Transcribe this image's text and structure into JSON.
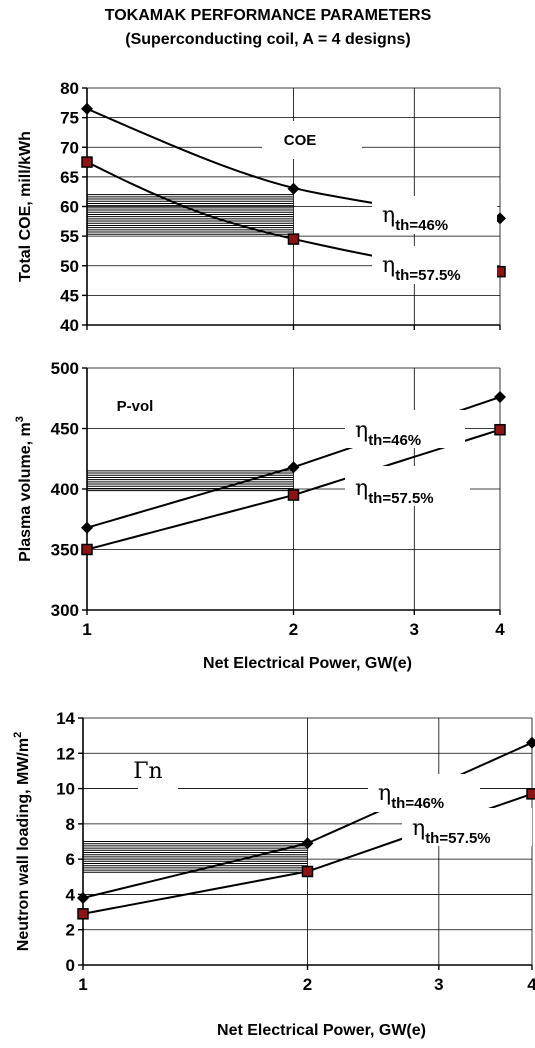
{
  "figure": {
    "title_line1": "TOKAMAK PERFORMANCE PARAMETERS",
    "title_line2": "(Superconducting coil, A = 4 designs)"
  },
  "chart_data": [
    {
      "type": "line",
      "annotation": "COE",
      "ylabel": "Total COE, mill/kWh",
      "xlabel": "",
      "x_scale": "log",
      "ylim": [
        40,
        80
      ],
      "y_ticks": [
        40,
        45,
        50,
        55,
        60,
        65,
        70,
        75,
        80
      ],
      "x_ticks": [
        1,
        2,
        3,
        4
      ],
      "grid": true,
      "shaded_band": {
        "x": [
          1,
          2
        ],
        "y": [
          55,
          62
        ]
      },
      "series": [
        {
          "symbol": "η",
          "name": "th=46%",
          "marker": "diamond",
          "x": [
            1,
            2,
            4
          ],
          "y": [
            76.5,
            63,
            58
          ],
          "curve_x": [
            1,
            1.2,
            1.45,
            1.7,
            2,
            2.4,
            2.8,
            3.2
          ],
          "curve_y": [
            76.5,
            72.5,
            68.5,
            65.5,
            63,
            61.3,
            60,
            59
          ]
        },
        {
          "symbol": "η",
          "name": "th=57.5%",
          "marker": "square",
          "x": [
            1,
            2,
            4
          ],
          "y": [
            67.5,
            54.5,
            49
          ],
          "curve_x": [
            1,
            1.2,
            1.45,
            1.7,
            2,
            2.4,
            2.8,
            3.2
          ],
          "curve_y": [
            67.5,
            63,
            59,
            56.5,
            54.5,
            52.5,
            51,
            50
          ]
        }
      ]
    },
    {
      "type": "line",
      "annotation": "P-vol",
      "ylabel": "Plasma volume, m",
      "ylabel_superscript": "3",
      "xlabel": "Net Electrical Power, GW(e)",
      "x_scale": "log",
      "ylim": [
        300,
        500
      ],
      "y_ticks": [
        300,
        350,
        400,
        450,
        500
      ],
      "x_ticks": [
        1,
        2,
        3,
        4
      ],
      "x_tick_labels": [
        "1",
        "2",
        "3",
        "4"
      ],
      "grid": true,
      "shaded_band": {
        "x": [
          1,
          2
        ],
        "y": [
          398,
          415
        ]
      },
      "series": [
        {
          "symbol": "η",
          "name": "th=46%",
          "marker": "diamond",
          "x": [
            1,
            2,
            4
          ],
          "y": [
            368,
            418,
            476
          ]
        },
        {
          "symbol": "η",
          "name": "th=57.5%",
          "marker": "square",
          "x": [
            1,
            2,
            4
          ],
          "y": [
            350,
            395,
            449
          ]
        }
      ]
    },
    {
      "type": "line",
      "annotation": "Γn",
      "ylabel": "Neutron wall loading, MW/m",
      "ylabel_superscript": "2",
      "xlabel": "Net Electrical Power, GW(e)",
      "x_scale": "log",
      "ylim": [
        0,
        14
      ],
      "y_ticks": [
        0,
        2,
        4,
        6,
        8,
        10,
        12,
        14
      ],
      "x_ticks": [
        1,
        2,
        3,
        4
      ],
      "x_tick_labels": [
        "1",
        "2",
        "3",
        "4"
      ],
      "grid": true,
      "shaded_band": {
        "x": [
          1,
          2
        ],
        "y": [
          5.2,
          7
        ]
      },
      "series": [
        {
          "symbol": "η",
          "name": "th=46%",
          "marker": "diamond",
          "x": [
            1,
            2,
            4
          ],
          "y": [
            3.8,
            6.9,
            12.6
          ]
        },
        {
          "symbol": "η",
          "name": "th=57.5%",
          "marker": "square",
          "x": [
            1,
            2,
            4
          ],
          "y": [
            2.9,
            5.3,
            9.7
          ]
        }
      ]
    }
  ]
}
